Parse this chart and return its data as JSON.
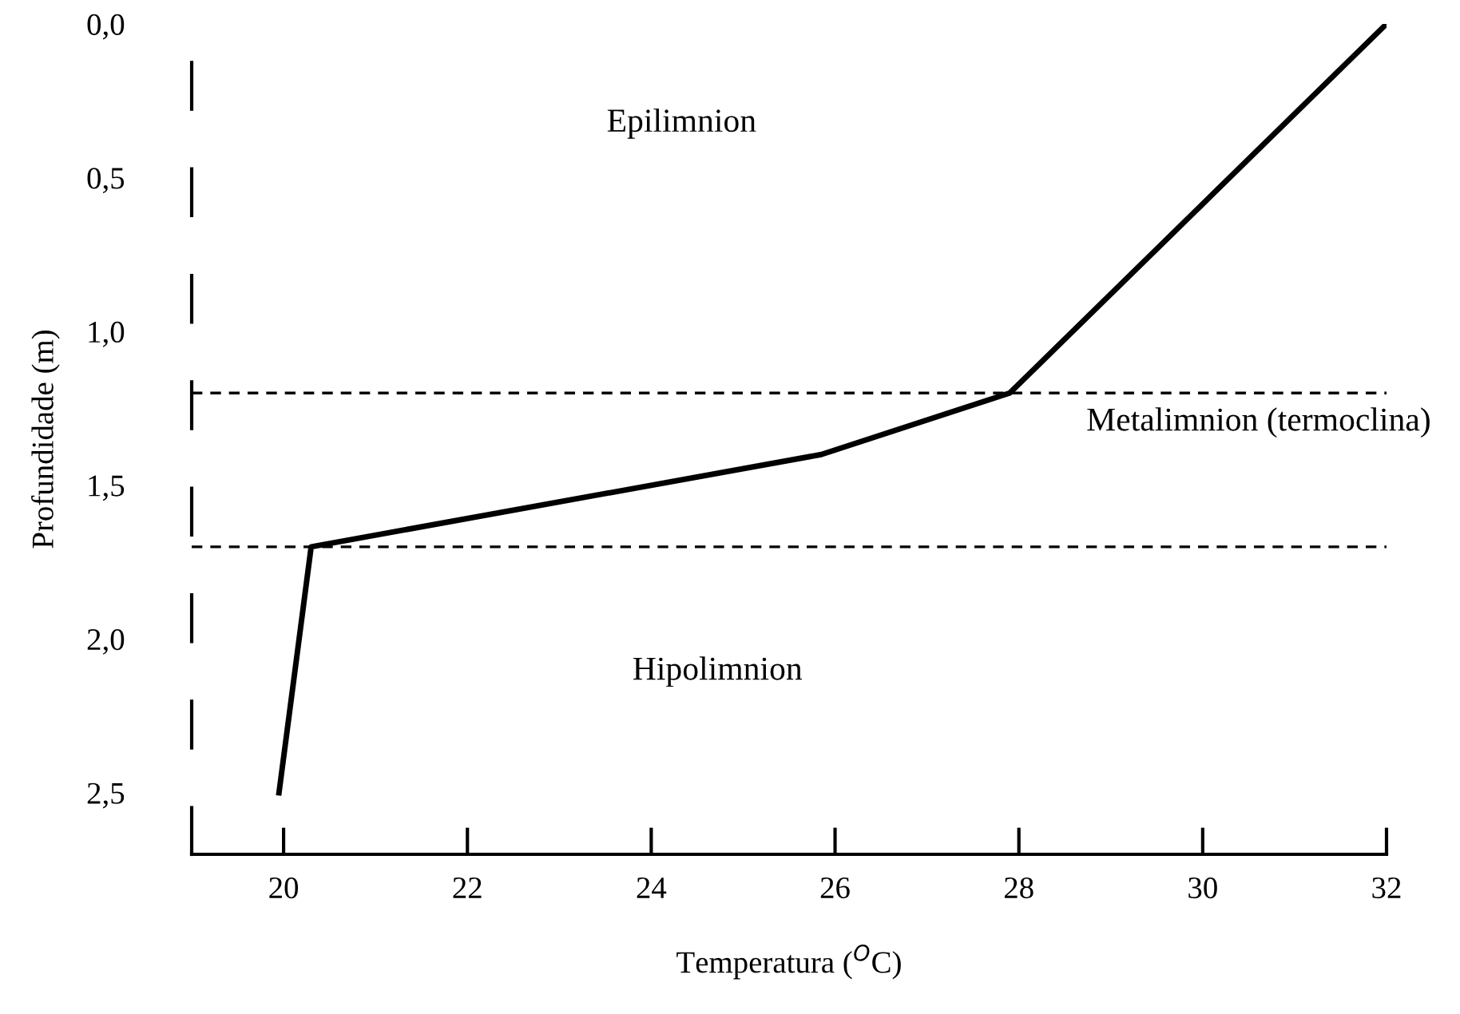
{
  "chart_data": {
    "type": "line",
    "xlabel": "Temperatura ($^{O}$C)",
    "ylabel": "Profundidade (m)",
    "x": [
      19.95,
      20.3,
      25.85,
      27.9,
      32.0
    ],
    "series": [
      {
        "color": "#000000",
        "values": [
          2.5,
          1.7,
          1.4,
          1.2,
          0.0
        ]
      }
    ],
    "xlim": [
      19.0,
      32.0
    ],
    "ylim": [
      2.7,
      0.0
    ],
    "xticks": [
      20,
      22,
      24,
      26,
      28,
      30,
      32
    ],
    "yticks": [
      {
        "value": 0,
        "label": "0,0"
      },
      {
        "value": 0.5,
        "label": "0,5"
      },
      {
        "value": 1.0,
        "label": "1,0"
      },
      {
        "value": 1.5,
        "label": "1,5"
      },
      {
        "value": 2.0,
        "label": "2,0"
      },
      {
        "value": 2.5,
        "label": "2,5"
      }
    ],
    "ref_lines": [
      {
        "axis": "y",
        "value": 1.2,
        "color": "#000000",
        "line_style": "dashed"
      },
      {
        "axis": "y",
        "value": 1.7,
        "color": "#000000",
        "line_style": "dashed"
      }
    ],
    "annotations": [
      "Epilimnion",
      "Metalimnion (termoclina)",
      "Hipolimnion"
    ],
    "grid": false,
    "legend": false,
    "marker": "none",
    "line_style": "solid"
  }
}
